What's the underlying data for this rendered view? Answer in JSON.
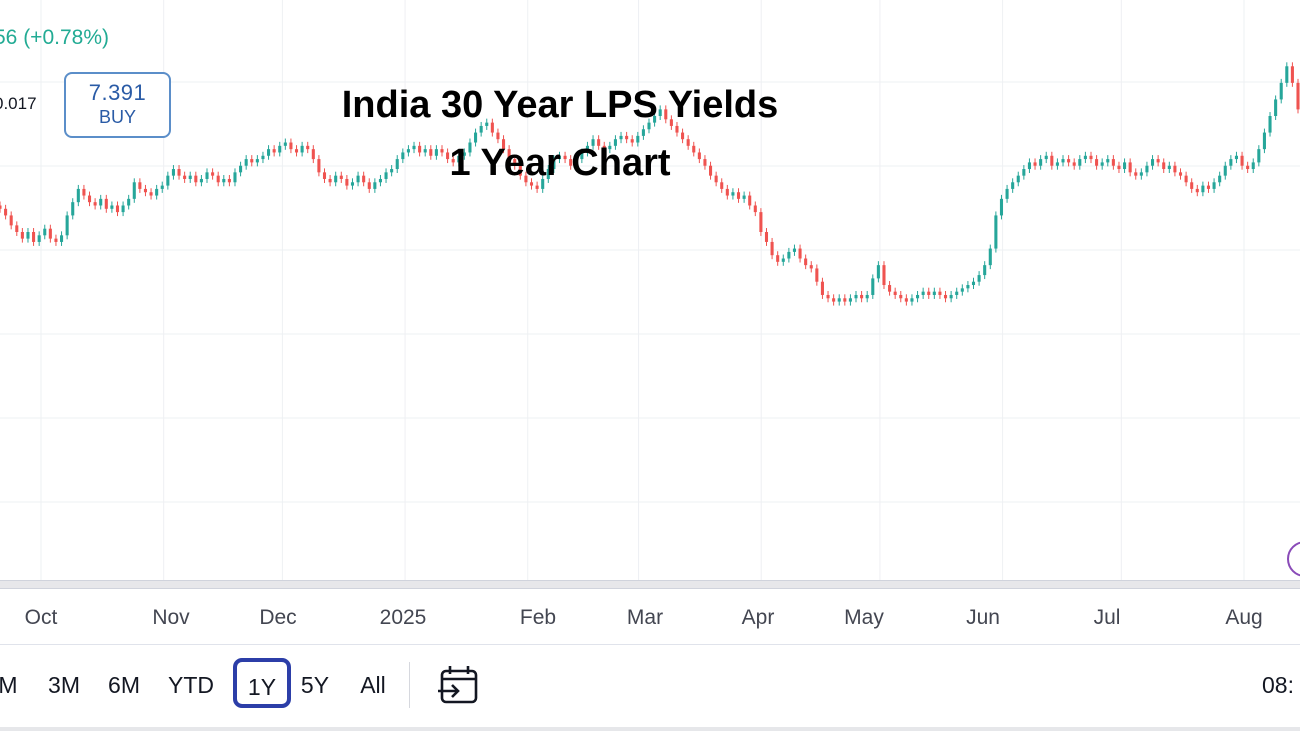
{
  "header": {
    "change_text": "56 (+0.78%)",
    "spread_text": "0.017",
    "buy": {
      "price": "7.391",
      "label": "BUY"
    }
  },
  "chart_data": {
    "type": "candlestick",
    "title": "India 30 Year LPS Yields",
    "subtitle": "1 Year Chart",
    "x_labels": [
      "Oct",
      "Nov",
      "Dec",
      "2025",
      "Feb",
      "Mar",
      "Apr",
      "May",
      "Jun",
      "Jul",
      "Aug"
    ],
    "x_label_days": [
      11,
      42,
      72,
      103,
      134,
      162,
      193,
      223,
      254,
      284,
      315
    ],
    "y_range": [
      6.0,
      7.75
    ],
    "up_color": "#26a69a",
    "down_color": "#ef5350",
    "candles_close": [
      7.12,
      7.1,
      7.07,
      7.05,
      7.03,
      7.05,
      7.02,
      7.04,
      7.06,
      7.03,
      7.02,
      7.04,
      7.1,
      7.14,
      7.18,
      7.16,
      7.14,
      7.13,
      7.15,
      7.12,
      7.13,
      7.11,
      7.13,
      7.15,
      7.2,
      7.18,
      7.17,
      7.16,
      7.18,
      7.19,
      7.22,
      7.24,
      7.22,
      7.21,
      7.22,
      7.2,
      7.21,
      7.23,
      7.22,
      7.2,
      7.21,
      7.2,
      7.23,
      7.25,
      7.27,
      7.26,
      7.27,
      7.28,
      7.3,
      7.29,
      7.31,
      7.32,
      7.3,
      7.29,
      7.31,
      7.3,
      7.27,
      7.23,
      7.21,
      7.2,
      7.22,
      7.21,
      7.19,
      7.2,
      7.22,
      7.2,
      7.18,
      7.2,
      7.21,
      7.23,
      7.24,
      7.27,
      7.29,
      7.3,
      7.31,
      7.29,
      7.3,
      7.28,
      7.3,
      7.29,
      7.27,
      7.26,
      7.28,
      7.29,
      7.32,
      7.35,
      7.37,
      7.38,
      7.35,
      7.33,
      7.3,
      7.27,
      7.25,
      7.22,
      7.2,
      7.19,
      7.18,
      7.21,
      7.24,
      7.27,
      7.28,
      7.27,
      7.25,
      7.27,
      7.29,
      7.31,
      7.33,
      7.31,
      7.3,
      7.31,
      7.33,
      7.34,
      7.33,
      7.32,
      7.34,
      7.36,
      7.38,
      7.4,
      7.42,
      7.39,
      7.37,
      7.35,
      7.33,
      7.31,
      7.29,
      7.27,
      7.25,
      7.22,
      7.2,
      7.18,
      7.16,
      7.17,
      7.15,
      7.16,
      7.13,
      7.11,
      7.05,
      7.02,
      6.98,
      6.96,
      6.97,
      6.99,
      7.0,
      6.97,
      6.95,
      6.94,
      6.9,
      6.86,
      6.85,
      6.84,
      6.85,
      6.84,
      6.85,
      6.86,
      6.85,
      6.86,
      6.91,
      6.95,
      6.89,
      6.87,
      6.86,
      6.85,
      6.84,
      6.85,
      6.86,
      6.87,
      6.86,
      6.87,
      6.86,
      6.85,
      6.86,
      6.87,
      6.88,
      6.89,
      6.9,
      6.92,
      6.95,
      7.0,
      7.1,
      7.15,
      7.18,
      7.2,
      7.22,
      7.24,
      7.26,
      7.25,
      7.27,
      7.28,
      7.25,
      7.26,
      7.27,
      7.26,
      7.25,
      7.27,
      7.28,
      7.27,
      7.25,
      7.26,
      7.27,
      7.25,
      7.24,
      7.26,
      7.23,
      7.22,
      7.23,
      7.25,
      7.27,
      7.26,
      7.24,
      7.25,
      7.23,
      7.22,
      7.2,
      7.18,
      7.17,
      7.19,
      7.18,
      7.2,
      7.22,
      7.25,
      7.27,
      7.28,
      7.25,
      7.24,
      7.26,
      7.3,
      7.35,
      7.4,
      7.45,
      7.5,
      7.55,
      7.5,
      7.42
    ]
  },
  "xaxis": {
    "months": [
      "Oct",
      "Nov",
      "Dec",
      "2025",
      "Feb",
      "Mar",
      "Apr",
      "May",
      "Jun",
      "Jul",
      "Aug"
    ]
  },
  "toolbar": {
    "ranges": [
      "M",
      "3M",
      "6M",
      "YTD",
      "1Y",
      "5Y",
      "All"
    ],
    "active_range": "1Y",
    "time": "08:"
  }
}
